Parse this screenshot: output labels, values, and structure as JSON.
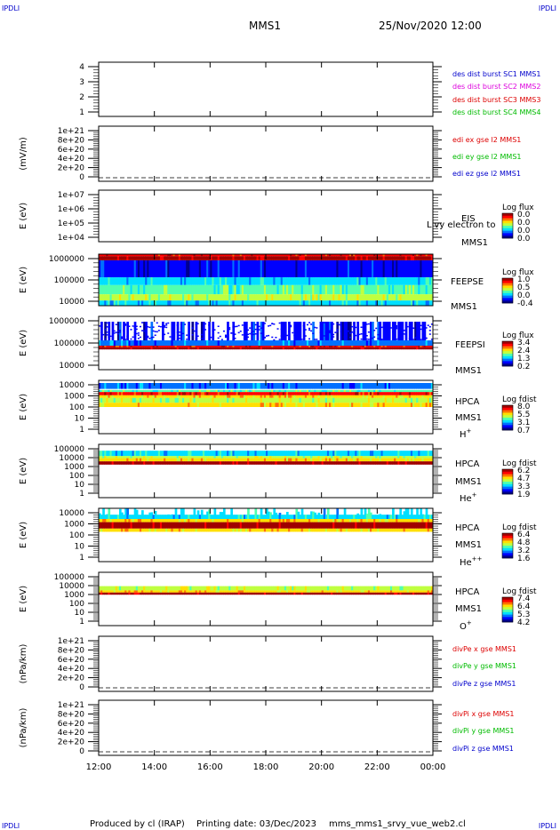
{
  "header": {
    "corner_tl": "IPDLI",
    "corner_tr": "IPDLI",
    "corner_bl": "IPDLI",
    "corner_br": "IPDLI",
    "spacecraft": "MMS1",
    "datetime": "25/Nov/2020 12:00"
  },
  "footer": {
    "produced_by": "Produced by cl (IRAP)",
    "printing_date": "Printing date: 03/Dec/2023",
    "filename": "mms_mms1_srvy_vue_web2.cl"
  },
  "time_axis": {
    "tick_labels": [
      "12:00",
      "14:00",
      "16:00",
      "18:00",
      "20:00",
      "22:00",
      "00:00"
    ],
    "range_hours": [
      12,
      24
    ]
  },
  "colors": {
    "blue": "#0000cc",
    "magenta": "#dd00dd",
    "red": "#dd0000",
    "green": "#00bb00"
  },
  "chart_data": [
    {
      "type": "line",
      "ylabel": "",
      "y_tick_labels": [
        "4",
        "3",
        "2",
        "1"
      ],
      "ylim": [
        0.5,
        4.3
      ],
      "legend": [
        {
          "text": "des dist burst SC1 MMS1",
          "color": "#0000cc"
        },
        {
          "text": "des dist burst SC2 MMS2",
          "color": "#dd00dd"
        },
        {
          "text": "des dist burst SC3 MMS3",
          "color": "#dd0000"
        },
        {
          "text": "des dist burst SC4 MMS4",
          "color": "#00bb00"
        }
      ],
      "series": []
    },
    {
      "type": "line",
      "ylabel": "(mV/m)",
      "y_tick_labels": [
        "1e+21",
        "8e+20",
        "6e+20",
        "4e+20",
        "2e+20",
        "0"
      ],
      "ylim": [
        0,
        1e+21
      ],
      "zero_line": true,
      "legend": [
        {
          "text": "edi ex gse l2 MMS1",
          "color": "#dd0000"
        },
        {
          "text": "edi ey gse l2 MMS1",
          "color": "#00bb00"
        },
        {
          "text": "edi ez gse l2 MMS1",
          "color": "#0000cc"
        }
      ],
      "series": []
    },
    {
      "type": "heatmap",
      "ylabel": "E (eV)",
      "y_tick_labels": [
        "1e+07",
        "1e+06",
        "1e+05",
        "1e+04"
      ],
      "y_scale": "log",
      "ylim": [
        10000,
        10000000
      ],
      "instrument": [
        "EIS",
        "MMS1"
      ],
      "overlay_text": "Livy electron to",
      "colorbar": {
        "title": "Log flux",
        "labels": [
          "0.0",
          "0.0",
          "0.0",
          "0.0"
        ]
      },
      "data": "empty"
    },
    {
      "type": "heatmap",
      "ylabel": "E (eV)",
      "y_tick_labels": [
        "1000000",
        "100000",
        "10000"
      ],
      "y_scale": "log",
      "ylim": [
        10000,
        1000000
      ],
      "instrument": [
        "FEEPSE",
        "MMS1"
      ],
      "colorbar": {
        "title": "Log flux",
        "labels": [
          "1.0",
          "0.5",
          "0.0",
          "-0.4"
        ]
      },
      "data": "continuous spectrum: red near 600000 eV, blue 250000-500000 eV, cyan/green below 200000 eV, yellow-green streaks near 30000 eV"
    },
    {
      "type": "heatmap",
      "ylabel": "E (eV)",
      "y_tick_labels": [
        "1000000",
        "100000",
        "10000"
      ],
      "y_scale": "log",
      "ylim": [
        10000,
        1000000
      ],
      "instrument": [
        "FEEPSI",
        "MMS1"
      ],
      "colorbar": {
        "title": "Log flux",
        "labels": [
          "3.4",
          "2.4",
          "1.3",
          "0.2"
        ]
      },
      "data": "sparse blue dots 100000-600000 eV, solid blue band 70000-120000 eV, red line near 60000 eV"
    },
    {
      "type": "heatmap",
      "ylabel": "E (eV)",
      "y_tick_labels": [
        "10000",
        "1000",
        "100",
        "10",
        "1"
      ],
      "y_scale": "log",
      "ylim": [
        1,
        20000
      ],
      "instrument": [
        "HPCA",
        "MMS1",
        "H+"
      ],
      "colorbar": {
        "title": "Log fdist",
        "labels": [
          "8.0",
          "5.5",
          "3.1",
          "0.7"
        ]
      },
      "data": "red band near 800 eV, yellow 100-400 eV, cyan/blue above 2000 eV with spikes"
    },
    {
      "type": "heatmap",
      "ylabel": "E (eV)",
      "y_tick_labels": [
        "100000",
        "10000",
        "1000",
        "100",
        "10",
        "1"
      ],
      "y_scale": "log",
      "ylim": [
        1,
        100000
      ],
      "instrument": [
        "HPCA",
        "MMS1",
        "He+"
      ],
      "colorbar": {
        "title": "Log fdist",
        "labels": [
          "6.2",
          "4.7",
          "3.3",
          "1.9"
        ]
      },
      "data": "red line near 700 eV, yellow 1000-3000 eV, green/blue above 3000 eV"
    },
    {
      "type": "heatmap",
      "ylabel": "E (eV)",
      "y_tick_labels": [
        "10000",
        "1000",
        "100",
        "10",
        "1"
      ],
      "y_scale": "log",
      "ylim": [
        1,
        20000
      ],
      "instrument": [
        "HPCA",
        "MMS1",
        "He++"
      ],
      "colorbar": {
        "title": "Log fdist",
        "labels": [
          "6.4",
          "4.8",
          "3.2",
          "1.6"
        ]
      },
      "data": "solid red band 300-1500 eV with yellow edges, sparse green/blue spikes above 2000 eV"
    },
    {
      "type": "heatmap",
      "ylabel": "E (eV)",
      "y_tick_labels": [
        "100000",
        "10000",
        "1000",
        "100",
        "10",
        "1"
      ],
      "y_scale": "log",
      "ylim": [
        1,
        100000
      ],
      "instrument": [
        "HPCA",
        "MMS1",
        "O+"
      ],
      "colorbar": {
        "title": "Log fdist",
        "labels": [
          "7.4",
          "6.4",
          "5.3",
          "4.2"
        ]
      },
      "data": "red line near 600 eV, yellow/green band 800-1500 eV"
    },
    {
      "type": "line",
      "ylabel": "(nPa/km)",
      "y_tick_labels": [
        "1e+21",
        "8e+20",
        "6e+20",
        "4e+20",
        "2e+20",
        "0"
      ],
      "ylim": [
        0,
        1e+21
      ],
      "zero_line": true,
      "legend": [
        {
          "text": "divPe x gse MMS1",
          "color": "#dd0000"
        },
        {
          "text": "divPe y gse MMS1",
          "color": "#00bb00"
        },
        {
          "text": "divPe z gse MMS1",
          "color": "#0000cc"
        }
      ],
      "series": []
    },
    {
      "type": "line",
      "ylabel": "(nPa/km)",
      "y_tick_labels": [
        "1e+21",
        "8e+20",
        "6e+20",
        "4e+20",
        "2e+20",
        "0"
      ],
      "ylim": [
        0,
        1e+21
      ],
      "zero_line": true,
      "legend": [
        {
          "text": "divPi x gse MMS1",
          "color": "#dd0000"
        },
        {
          "text": "divPi y gse MMS1",
          "color": "#00bb00"
        },
        {
          "text": "divPi z gse MMS1",
          "color": "#0000cc"
        }
      ],
      "series": []
    }
  ]
}
